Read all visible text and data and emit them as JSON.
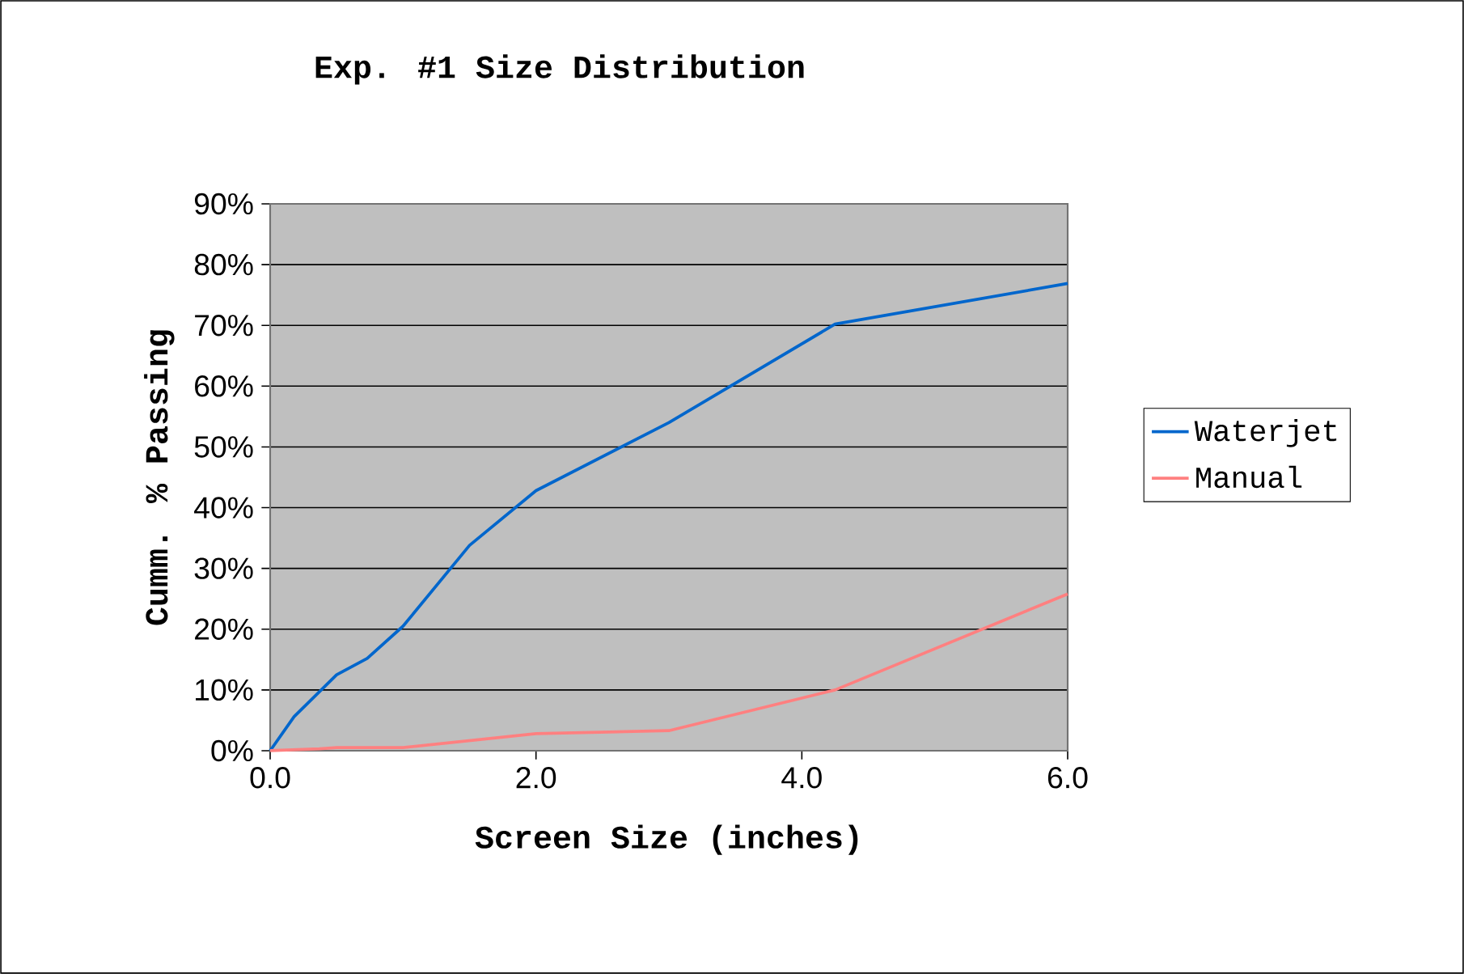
{
  "chart_data": {
    "type": "line",
    "title": "Exp. #1 Size Distribution",
    "xlabel": "Screen Size (inches)",
    "ylabel": "Cumm. % Passing",
    "xlim": [
      0,
      6
    ],
    "xticks": [
      {
        "value": 0,
        "label": "0.0"
      },
      {
        "value": 2,
        "label": "2.0"
      },
      {
        "value": 4,
        "label": "4.0"
      },
      {
        "value": 6,
        "label": "6.0"
      }
    ],
    "ylim": [
      0,
      90
    ],
    "yticks": [
      {
        "value": 0,
        "label": "0%"
      },
      {
        "value": 10,
        "label": "10%"
      },
      {
        "value": 20,
        "label": "20%"
      },
      {
        "value": 30,
        "label": "30%"
      },
      {
        "value": 40,
        "label": "40%"
      },
      {
        "value": 50,
        "label": "50%"
      },
      {
        "value": 60,
        "label": "60%"
      },
      {
        "value": 70,
        "label": "70%"
      },
      {
        "value": 80,
        "label": "80%"
      },
      {
        "value": 90,
        "label": "90%"
      }
    ],
    "grid": "y",
    "legend": "right",
    "marker": "none",
    "line_style": "solid",
    "series": [
      {
        "name": "Waterjet",
        "color": "#0066cc",
        "x": [
          0,
          0.18,
          0.5,
          0.73,
          1.0,
          1.5,
          2.0,
          3.0,
          4.25,
          6.0
        ],
        "values": [
          0,
          5.6,
          12.5,
          15.2,
          20.5,
          33.8,
          42.8,
          54,
          70.2,
          76.9
        ]
      },
      {
        "name": "Manual",
        "color": "#ff8080",
        "x": [
          0,
          0.37,
          0.5,
          1.0,
          2.0,
          3.0,
          4.25,
          6.0
        ],
        "values": [
          0,
          0.3,
          0.5,
          0.5,
          2.8,
          3.3,
          10,
          25.8
        ]
      }
    ]
  }
}
